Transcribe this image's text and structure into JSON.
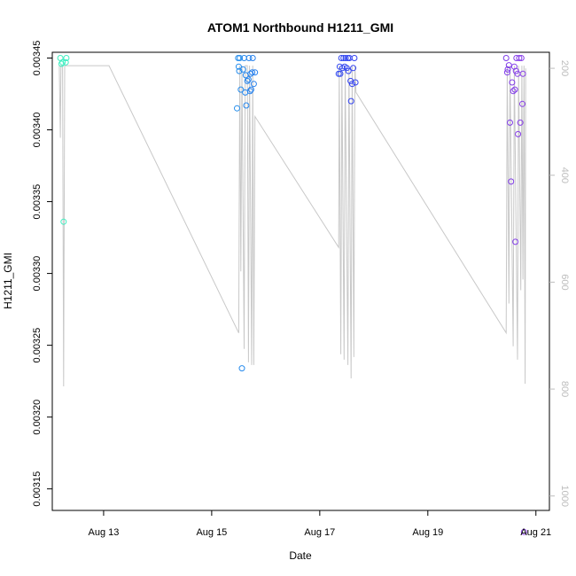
{
  "chart_data": {
    "type": "scatter",
    "title": "ATOM1 Northbound H1211_GMI",
    "xlabel": "Date",
    "ylabel": "H1211_GMI",
    "x_ticks": [
      {
        "day": 13,
        "label": "Aug 13"
      },
      {
        "day": 15,
        "label": "Aug 15"
      },
      {
        "day": 17,
        "label": "Aug 17"
      },
      {
        "day": 19,
        "label": "Aug 19"
      },
      {
        "day": 21,
        "label": "Aug 21"
      }
    ],
    "xlim": [
      12.05,
      21.25
    ],
    "ylim": [
      0.003135,
      0.003454
    ],
    "y_ticks": [
      {
        "value": 0.00315,
        "label": "0.00315"
      },
      {
        "value": 0.0032,
        "label": "0.00320"
      },
      {
        "value": 0.00325,
        "label": "0.00325"
      },
      {
        "value": 0.0033,
        "label": "0.00330"
      },
      {
        "value": 0.00335,
        "label": "0.00335"
      },
      {
        "value": 0.0034,
        "label": "0.00340"
      },
      {
        "value": 0.00345,
        "label": "0.00345"
      }
    ],
    "y2lim": [
      1027,
      170
    ],
    "y2_ticks": [
      {
        "value": 200,
        "label": "200"
      },
      {
        "value": 400,
        "label": "400"
      },
      {
        "value": 600,
        "label": "600"
      },
      {
        "value": 800,
        "label": "800"
      },
      {
        "value": 1000,
        "label": "1000"
      }
    ],
    "colors": {
      "line": "#c8c8c8",
      "right_axis": "#bdbdbd",
      "point_gradient": [
        "#3ff0c0",
        "#22c8e8",
        "#2a5cf0",
        "#3f2ef0",
        "#8a3fe8"
      ]
    },
    "points": [
      {
        "x": 12.2,
        "y": 0.00345
      },
      {
        "x": 12.22,
        "y": 0.003446
      },
      {
        "x": 12.24,
        "y": 0.003447
      },
      {
        "x": 12.26,
        "y": 0.003336
      },
      {
        "x": 12.3,
        "y": 0.003447
      },
      {
        "x": 12.31,
        "y": 0.00345
      },
      {
        "x": 15.47,
        "y": 0.003415
      },
      {
        "x": 15.49,
        "y": 0.00345
      },
      {
        "x": 15.5,
        "y": 0.003444
      },
      {
        "x": 15.51,
        "y": 0.003441
      },
      {
        "x": 15.52,
        "y": 0.00345
      },
      {
        "x": 15.54,
        "y": 0.003428
      },
      {
        "x": 15.56,
        "y": 0.003234
      },
      {
        "x": 15.58,
        "y": 0.003442
      },
      {
        "x": 15.6,
        "y": 0.00345
      },
      {
        "x": 15.62,
        "y": 0.003426
      },
      {
        "x": 15.63,
        "y": 0.003438
      },
      {
        "x": 15.64,
        "y": 0.003417
      },
      {
        "x": 15.66,
        "y": 0.003434
      },
      {
        "x": 15.68,
        "y": 0.003435
      },
      {
        "x": 15.69,
        "y": 0.00345
      },
      {
        "x": 15.71,
        "y": 0.003427
      },
      {
        "x": 15.72,
        "y": 0.003439
      },
      {
        "x": 15.73,
        "y": 0.003428
      },
      {
        "x": 15.75,
        "y": 0.00344
      },
      {
        "x": 15.76,
        "y": 0.00345
      },
      {
        "x": 15.78,
        "y": 0.003432
      },
      {
        "x": 15.8,
        "y": 0.00344
      },
      {
        "x": 17.35,
        "y": 0.003439
      },
      {
        "x": 17.37,
        "y": 0.003444
      },
      {
        "x": 17.38,
        "y": 0.003439
      },
      {
        "x": 17.4,
        "y": 0.00345
      },
      {
        "x": 17.42,
        "y": 0.003443
      },
      {
        "x": 17.44,
        "y": 0.00345
      },
      {
        "x": 17.46,
        "y": 0.003444
      },
      {
        "x": 17.48,
        "y": 0.00345
      },
      {
        "x": 17.5,
        "y": 0.003443
      },
      {
        "x": 17.52,
        "y": 0.00345
      },
      {
        "x": 17.53,
        "y": 0.003441
      },
      {
        "x": 17.55,
        "y": 0.00345
      },
      {
        "x": 17.57,
        "y": 0.003434
      },
      {
        "x": 17.58,
        "y": 0.00342
      },
      {
        "x": 17.6,
        "y": 0.003432
      },
      {
        "x": 17.62,
        "y": 0.003443
      },
      {
        "x": 17.64,
        "y": 0.00345
      },
      {
        "x": 17.66,
        "y": 0.003433
      },
      {
        "x": 20.45,
        "y": 0.00345
      },
      {
        "x": 20.47,
        "y": 0.00344
      },
      {
        "x": 20.48,
        "y": 0.003442
      },
      {
        "x": 20.5,
        "y": 0.003445
      },
      {
        "x": 20.52,
        "y": 0.003405
      },
      {
        "x": 20.54,
        "y": 0.003364
      },
      {
        "x": 20.56,
        "y": 0.003433
      },
      {
        "x": 20.58,
        "y": 0.003427
      },
      {
        "x": 20.6,
        "y": 0.003444
      },
      {
        "x": 20.61,
        "y": 0.003428
      },
      {
        "x": 20.62,
        "y": 0.003322
      },
      {
        "x": 20.63,
        "y": 0.003441
      },
      {
        "x": 20.64,
        "y": 0.00345
      },
      {
        "x": 20.66,
        "y": 0.003439
      },
      {
        "x": 20.67,
        "y": 0.003397
      },
      {
        "x": 20.69,
        "y": 0.00345
      },
      {
        "x": 20.71,
        "y": 0.003405
      },
      {
        "x": 20.73,
        "y": 0.00345
      },
      {
        "x": 20.75,
        "y": 0.003418
      },
      {
        "x": 20.76,
        "y": 0.003439
      },
      {
        "x": 20.78,
        "y": 0.00312
      }
    ],
    "line_y2": [
      {
        "x": 12.18,
        "y": 195
      },
      {
        "x": 12.2,
        "y": 330
      },
      {
        "x": 12.21,
        "y": 195
      },
      {
        "x": 12.24,
        "y": 195
      },
      {
        "x": 12.26,
        "y": 795
      },
      {
        "x": 12.28,
        "y": 195
      },
      {
        "x": 12.3,
        "y": 195
      },
      {
        "x": 12.33,
        "y": 195
      },
      {
        "x": 12.35,
        "y": 195
      },
      {
        "x": 13.1,
        "y": 195
      },
      {
        "x": 15.5,
        "y": 695
      },
      {
        "x": 15.52,
        "y": 195
      },
      {
        "x": 15.54,
        "y": 580
      },
      {
        "x": 15.56,
        "y": 195
      },
      {
        "x": 15.6,
        "y": 725
      },
      {
        "x": 15.62,
        "y": 195
      },
      {
        "x": 15.66,
        "y": 195
      },
      {
        "x": 15.68,
        "y": 750
      },
      {
        "x": 15.7,
        "y": 195
      },
      {
        "x": 15.74,
        "y": 755
      },
      {
        "x": 15.76,
        "y": 195
      },
      {
        "x": 15.78,
        "y": 755
      },
      {
        "x": 15.8,
        "y": 290
      },
      {
        "x": 17.35,
        "y": 535
      },
      {
        "x": 17.36,
        "y": 195
      },
      {
        "x": 17.39,
        "y": 735
      },
      {
        "x": 17.41,
        "y": 195
      },
      {
        "x": 17.45,
        "y": 745
      },
      {
        "x": 17.47,
        "y": 195
      },
      {
        "x": 17.52,
        "y": 755
      },
      {
        "x": 17.54,
        "y": 195
      },
      {
        "x": 17.58,
        "y": 780
      },
      {
        "x": 17.6,
        "y": 195
      },
      {
        "x": 17.63,
        "y": 740
      },
      {
        "x": 17.65,
        "y": 195
      },
      {
        "x": 17.67,
        "y": 245
      },
      {
        "x": 20.45,
        "y": 695
      },
      {
        "x": 20.47,
        "y": 195
      },
      {
        "x": 20.5,
        "y": 640
      },
      {
        "x": 20.52,
        "y": 195
      },
      {
        "x": 20.58,
        "y": 720
      },
      {
        "x": 20.6,
        "y": 195
      },
      {
        "x": 20.66,
        "y": 745
      },
      {
        "x": 20.68,
        "y": 195
      },
      {
        "x": 20.72,
        "y": 615
      },
      {
        "x": 20.74,
        "y": 195
      },
      {
        "x": 20.76,
        "y": 595
      },
      {
        "x": 20.78,
        "y": 195
      },
      {
        "x": 20.8,
        "y": 790
      },
      {
        "x": 20.81,
        "y": 200
      }
    ]
  }
}
